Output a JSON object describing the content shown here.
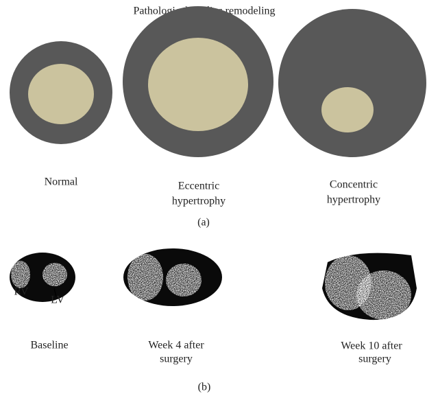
{
  "title": "Pathological cardiac remodeling",
  "panel_a": {
    "label": "(a)",
    "items": [
      {
        "lines": [
          "Normal"
        ]
      },
      {
        "lines": [
          "Eccentric",
          "hypertrophy"
        ]
      },
      {
        "lines": [
          "Concentric",
          "hypertrophy"
        ]
      }
    ]
  },
  "panel_b": {
    "label": "(b)",
    "items": [
      {
        "lines": [
          "Baseline"
        ],
        "annotations": [
          "RV",
          "LV"
        ]
      },
      {
        "lines": [
          "Week 4 after",
          "surgery"
        ]
      },
      {
        "lines": [
          "Week 10 after",
          "surgery"
        ]
      }
    ]
  }
}
